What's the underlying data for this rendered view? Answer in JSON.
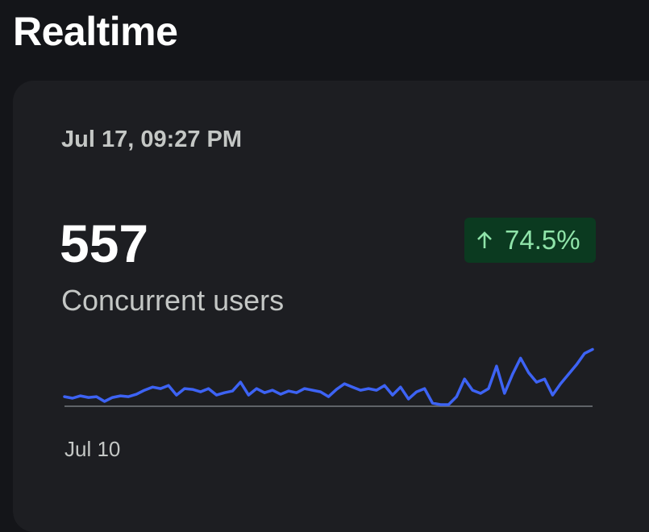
{
  "header": {
    "title": "Realtime"
  },
  "card": {
    "timestamp": "Jul 17, 09:27 PM",
    "value": "557",
    "label": "Concurrent users",
    "change": "74.5%",
    "chart_data": {
      "type": "line",
      "x_label": "Jul 10",
      "color": "#3d63f4",
      "ylim": [
        0,
        600
      ],
      "values": [
        94,
        79,
        102,
        86,
        94,
        47,
        86,
        102,
        94,
        118,
        157,
        188,
        173,
        204,
        110,
        173,
        165,
        141,
        173,
        110,
        133,
        149,
        236,
        110,
        173,
        133,
        157,
        118,
        149,
        133,
        173,
        157,
        141,
        94,
        165,
        220,
        188,
        157,
        173,
        157,
        204,
        110,
        188,
        71,
        141,
        173,
        31,
        16,
        16,
        94,
        267,
        157,
        126,
        173,
        393,
        126,
        314,
        471,
        330,
        236,
        267,
        110,
        220,
        314,
        408,
        518,
        557
      ]
    }
  }
}
